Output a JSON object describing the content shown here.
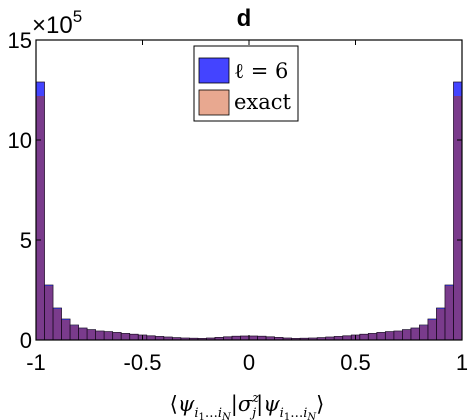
{
  "chart_data": {
    "type": "bar",
    "title": "d",
    "multiplier": "×10",
    "multiplier_exponent": "5",
    "xlabel": "⟨ψ_{i1…iN}|σ_j^z|ψ_{i1…iN}⟩",
    "ylabel": "",
    "xlim": [
      -1,
      1
    ],
    "ylim": [
      0,
      15
    ],
    "y_ticks": [
      0,
      5,
      10,
      15
    ],
    "y_tick_labels": [
      "0",
      "5",
      "10",
      "15"
    ],
    "x_ticks": [
      -1,
      -0.5,
      0,
      0.5,
      1
    ],
    "x_tick_labels": [
      "-1",
      "-0.5",
      "0",
      "0.5",
      "1"
    ],
    "legend_position": "top-center",
    "grid": false,
    "bin_edges_start": -1,
    "bin_width": 0.04,
    "series": [
      {
        "name": "ℓ = 6",
        "color": "#4444ff",
        "values": [
          12.9,
          2.75,
          1.6,
          1.05,
          0.75,
          0.6,
          0.52,
          0.45,
          0.42,
          0.38,
          0.33,
          0.29,
          0.25,
          0.21,
          0.18,
          0.15,
          0.12,
          0.1,
          0.09,
          0.08,
          0.1,
          0.13,
          0.16,
          0.19,
          0.2,
          0.2,
          0.19,
          0.16,
          0.13,
          0.1,
          0.08,
          0.09,
          0.1,
          0.12,
          0.15,
          0.18,
          0.21,
          0.25,
          0.29,
          0.33,
          0.38,
          0.42,
          0.45,
          0.52,
          0.6,
          0.75,
          1.05,
          1.6,
          2.75,
          12.9
        ]
      },
      {
        "name": "exact",
        "color": "#e8a890",
        "values": [
          12.2,
          2.7,
          1.55,
          1.0,
          0.72,
          0.58,
          0.5,
          0.44,
          0.41,
          0.37,
          0.32,
          0.28,
          0.24,
          0.2,
          0.17,
          0.14,
          0.11,
          0.09,
          0.08,
          0.08,
          0.1,
          0.13,
          0.16,
          0.19,
          0.2,
          0.2,
          0.19,
          0.16,
          0.13,
          0.1,
          0.08,
          0.08,
          0.09,
          0.11,
          0.14,
          0.17,
          0.2,
          0.24,
          0.28,
          0.32,
          0.37,
          0.41,
          0.44,
          0.5,
          0.58,
          0.72,
          1.0,
          1.55,
          2.7,
          12.2
        ]
      }
    ],
    "overlap_color": "#7a3b8c"
  }
}
